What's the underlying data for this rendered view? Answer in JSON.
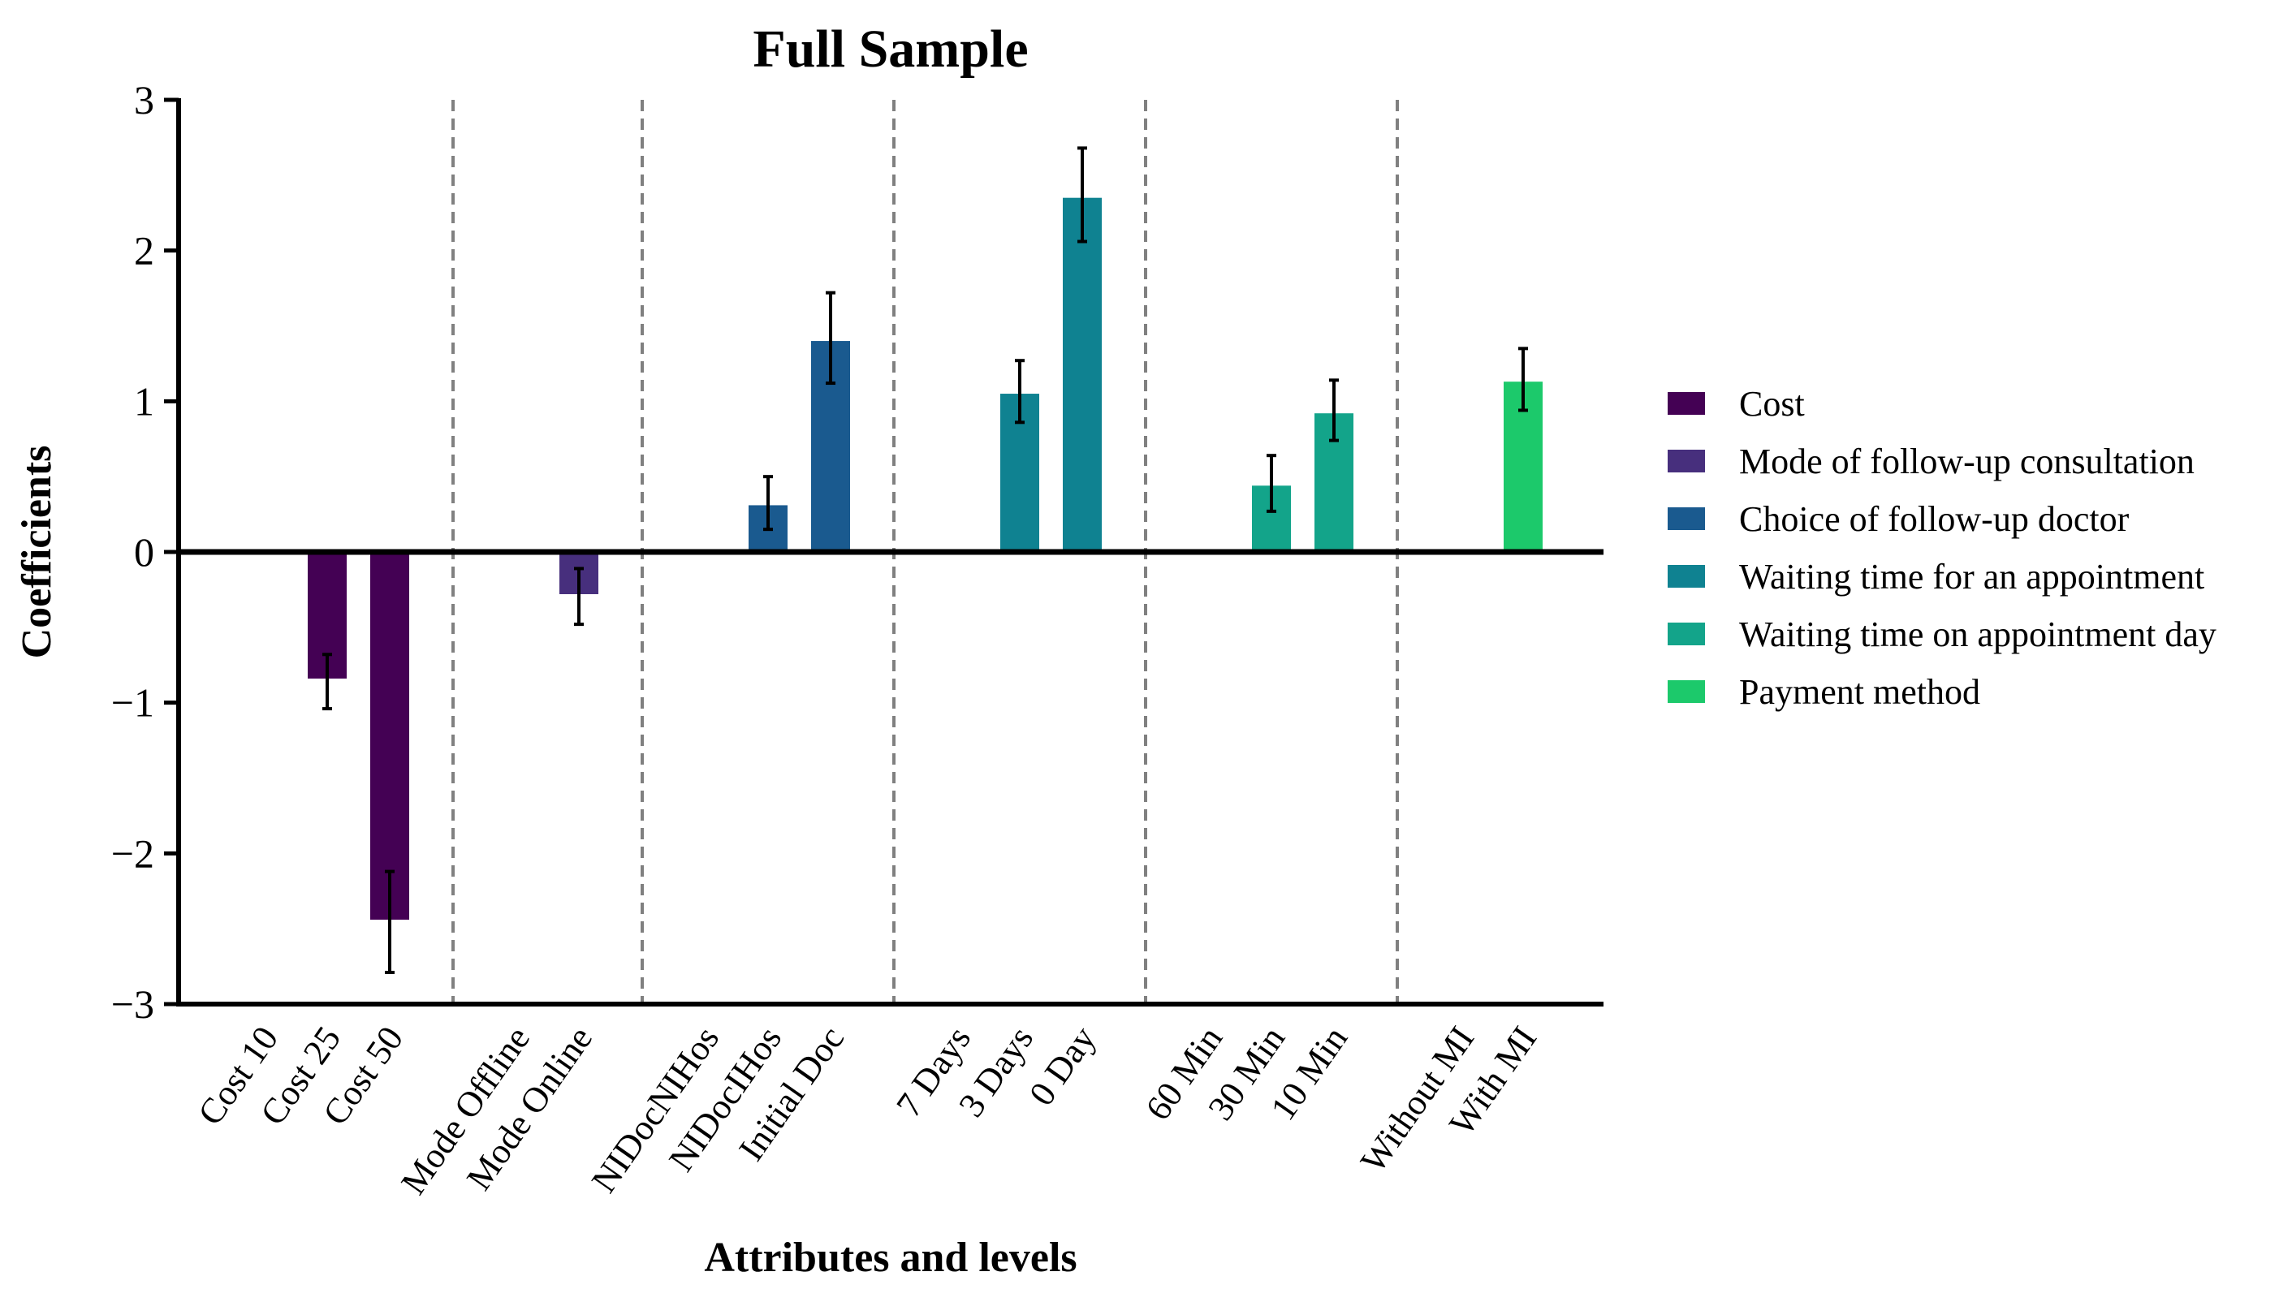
{
  "chart_data": {
    "type": "bar",
    "title": "Full Sample",
    "xlabel": "Attributes and levels",
    "ylabel": "Coefficients",
    "ylim": [
      -3,
      3
    ],
    "yticks": [
      3,
      2,
      1,
      0,
      -1,
      -2,
      -3
    ],
    "ytick_labels": [
      "3",
      "2",
      "1",
      "0",
      "−1",
      "−2",
      "−3"
    ],
    "legend_position": "right",
    "grid": false,
    "groups": [
      {
        "name": "Cost",
        "color": "#440154",
        "levels": [
          {
            "label": "Cost 10",
            "value": 0,
            "ci": null
          },
          {
            "label": "Cost 25",
            "value": -0.84,
            "ci": [
              -1.04,
              -0.68
            ]
          },
          {
            "label": "Cost 50",
            "value": -2.44,
            "ci": [
              -2.79,
              -2.12
            ]
          }
        ]
      },
      {
        "name": "Mode of follow-up consultation",
        "color": "#472f7d",
        "levels": [
          {
            "label": "Mode Offline",
            "value": 0,
            "ci": null
          },
          {
            "label": "Mode Online",
            "value": -0.28,
            "ci": [
              -0.48,
              -0.11
            ]
          }
        ]
      },
      {
        "name": "Choice of follow-up doctor",
        "color": "#1a5a8f",
        "levels": [
          {
            "label": "NIDocNIHos",
            "value": 0,
            "ci": null
          },
          {
            "label": "NIDocIHos",
            "value": 0.31,
            "ci": [
              0.15,
              0.5
            ]
          },
          {
            "label": "Initial Doc",
            "value": 1.4,
            "ci": [
              1.12,
              1.72
            ]
          }
        ]
      },
      {
        "name": "Waiting time for an appointment",
        "color": "#0f8291",
        "levels": [
          {
            "label": "7 Days",
            "value": 0,
            "ci": null
          },
          {
            "label": "3 Days",
            "value": 1.05,
            "ci": [
              0.86,
              1.27
            ]
          },
          {
            "label": "0 Day",
            "value": 2.35,
            "ci": [
              2.06,
              2.68
            ]
          }
        ]
      },
      {
        "name": "Waiting time on appointment day",
        "color": "#13a48a",
        "levels": [
          {
            "label": "60 Min",
            "value": 0,
            "ci": null
          },
          {
            "label": "30 Min",
            "value": 0.44,
            "ci": [
              0.27,
              0.64
            ]
          },
          {
            "label": "10 Min",
            "value": 0.92,
            "ci": [
              0.74,
              1.14
            ]
          }
        ]
      },
      {
        "name": "Payment method",
        "color": "#1cc96b",
        "levels": [
          {
            "label": "Without MI",
            "value": 0,
            "ci": null
          },
          {
            "label": "With MI",
            "value": 1.13,
            "ci": [
              0.94,
              1.35
            ]
          }
        ]
      }
    ]
  }
}
